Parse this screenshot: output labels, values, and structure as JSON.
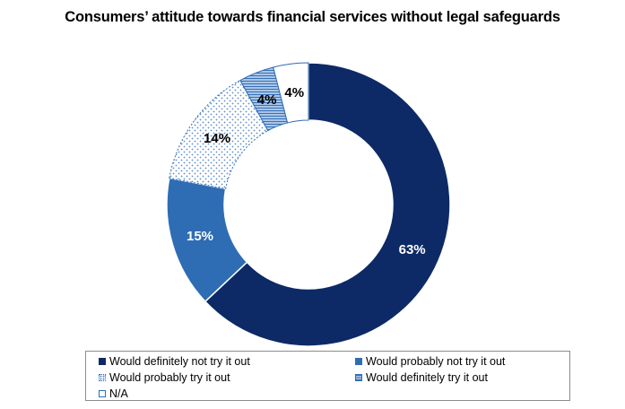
{
  "chart_data": {
    "type": "pie",
    "variant": "donut",
    "title": "Consumers’ attitude towards financial services without legal safeguards",
    "categories": [
      "Would definitely not try it out",
      "Would probably not try it out",
      "Would probably try it out",
      "Would definitely try it out",
      "N/A"
    ],
    "values": [
      63,
      15,
      14,
      4,
      4
    ],
    "value_labels": [
      "63%",
      "15%",
      "14%",
      "4%",
      "4%"
    ],
    "colors": [
      "#0d2a66",
      "#2e6db4",
      "#ffffff",
      "#a9c6e8",
      "#ffffff"
    ],
    "patterns": [
      "solid",
      "solid",
      "dots",
      "horizontal-lines",
      "none"
    ],
    "legend_position": "bottom"
  }
}
